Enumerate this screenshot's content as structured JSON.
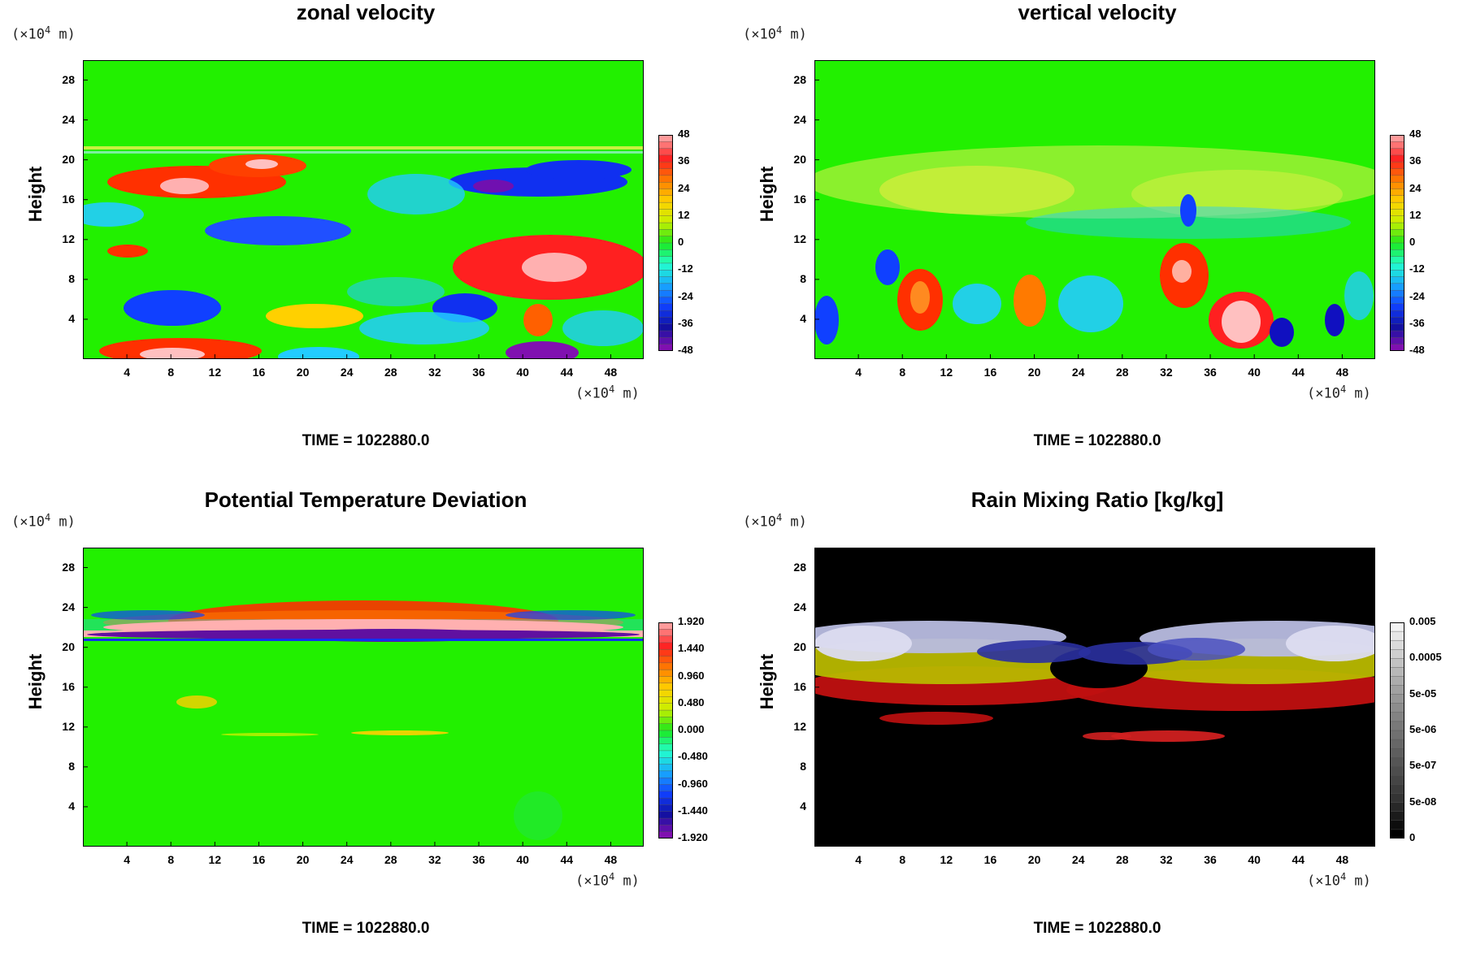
{
  "units": {
    "y": "(×10",
    "y_sup": "4",
    "y_end": " m)",
    "x": "(×10",
    "x_sup": "4",
    "x_end": " m)"
  },
  "ylabel": "Height",
  "time_label": "TIME = 1022880.0",
  "panels": [
    {
      "title": "zonal velocity",
      "colorbar": [
        "48",
        "36",
        "24",
        "12",
        "0",
        "-12",
        "-24",
        "-36",
        "-48"
      ],
      "colormap": "rainbow"
    },
    {
      "title": "vertical velocity",
      "colorbar": [
        "48",
        "36",
        "24",
        "12",
        "0",
        "-12",
        "-24",
        "-36",
        "-48"
      ],
      "colormap": "rainbow"
    },
    {
      "title": "Potential Temperature Deviation",
      "colorbar": [
        "1.920",
        "1.440",
        "0.960",
        "0.480",
        "0.000",
        "-0.480",
        "-0.960",
        "-1.440",
        "-1.920"
      ],
      "colormap": "rainbow"
    },
    {
      "title": "Rain Mixing Ratio [kg/kg]",
      "colorbar": [
        "0.005",
        "0.0005",
        "5e-05",
        "5e-06",
        "5e-07",
        "5e-08",
        "0"
      ],
      "colormap": "gray"
    }
  ],
  "chart_data": [
    {
      "type": "heatmap",
      "title": "zonal velocity",
      "ylabel": "Height",
      "x_ticks": [
        4,
        8,
        12,
        16,
        20,
        24,
        28,
        32,
        36,
        40,
        44,
        48
      ],
      "y_ticks": [
        4,
        8,
        12,
        16,
        20,
        24,
        28
      ],
      "xlim": [
        0,
        51
      ],
      "ylim": [
        0,
        30
      ],
      "colorbar_ticks": [
        48,
        36,
        24,
        12,
        0,
        -12,
        -24,
        -36,
        -48
      ],
      "annotation": "TIME = 1022880.0"
    },
    {
      "type": "heatmap",
      "title": "vertical velocity",
      "ylabel": "Height",
      "x_ticks": [
        4,
        8,
        12,
        16,
        20,
        24,
        28,
        32,
        36,
        40,
        44,
        48
      ],
      "y_ticks": [
        4,
        8,
        12,
        16,
        20,
        24,
        28
      ],
      "xlim": [
        0,
        51
      ],
      "ylim": [
        0,
        30
      ],
      "colorbar_ticks": [
        48,
        36,
        24,
        12,
        0,
        -12,
        -24,
        -36,
        -48
      ],
      "annotation": "TIME = 1022880.0"
    },
    {
      "type": "heatmap",
      "title": "Potential Temperature Deviation",
      "ylabel": "Height",
      "x_ticks": [
        4,
        8,
        12,
        16,
        20,
        24,
        28,
        32,
        36,
        40,
        44,
        48
      ],
      "y_ticks": [
        4,
        8,
        12,
        16,
        20,
        24,
        28
      ],
      "xlim": [
        0,
        51
      ],
      "ylim": [
        0,
        30
      ],
      "colorbar_ticks": [
        1.92,
        1.44,
        0.96,
        0.48,
        0.0,
        -0.48,
        -0.96,
        -1.44,
        -1.92
      ],
      "annotation": "TIME = 1022880.0"
    },
    {
      "type": "heatmap",
      "title": "Rain Mixing Ratio [kg/kg]",
      "ylabel": "Height",
      "x_ticks": [
        4,
        8,
        12,
        16,
        20,
        24,
        28,
        32,
        36,
        40,
        44,
        48
      ],
      "y_ticks": [
        4,
        8,
        12,
        16,
        20,
        24,
        28
      ],
      "xlim": [
        0,
        51
      ],
      "ylim": [
        0,
        30
      ],
      "colorbar_ticks": [
        "0.005",
        "0.0005",
        "5e-05",
        "5e-06",
        "5e-07",
        "5e-08",
        "0"
      ],
      "annotation": "TIME = 1022880.0"
    }
  ]
}
